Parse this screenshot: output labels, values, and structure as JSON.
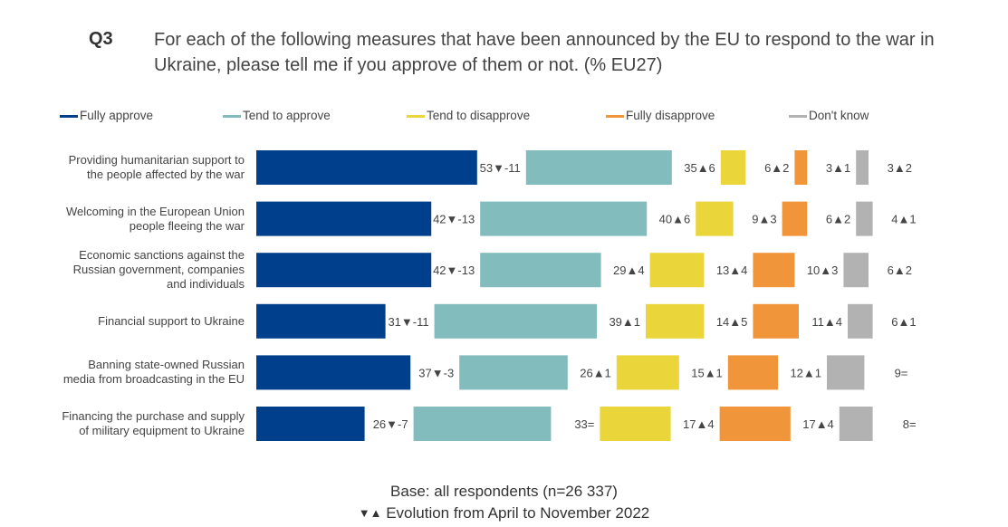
{
  "question": {
    "number": "Q3",
    "text": "For each of the following measures that have been announced by the EU to respond to the war in Ukraine, please tell me if you approve of them or not. (% EU27)"
  },
  "colors": {
    "Fully approve": "#003f8c",
    "Tend to approve": "#82bcbd",
    "Tend to disapprove": "#ead63b",
    "Fully disapprove": "#f0953a",
    "Don't know": "#b2b2b2"
  },
  "footer": {
    "base": "Base: all respondents (n=26 337)",
    "evolution_arrows": "▼▲",
    "evolution_text": "Evolution from April to November 2022"
  },
  "chart_data": {
    "type": "bar",
    "orientation": "horizontal",
    "stacked": false,
    "legend_position": "top",
    "categories": [
      "Providing humanitarian support to the people affected by the war",
      "Welcoming in the European Union people fleeing the war",
      "Economic sanctions against the Russian government, companies and individuals",
      "Financial support to Ukraine",
      "Banning state-owned Russian media from broadcasting in the EU",
      "Financing the purchase and supply of military equipment to Ukraine"
    ],
    "category_lines": [
      [
        "Providing humanitarian support to",
        "the people affected by the war"
      ],
      [
        "Welcoming in the European Union",
        "people fleeing the war"
      ],
      [
        "Economic sanctions against the",
        "Russian government, companies",
        "and individuals"
      ],
      [
        "Financial support to Ukraine"
      ],
      [
        "Banning state-owned Russian",
        "media from broadcasting in the EU"
      ],
      [
        "Financing the purchase and supply",
        "of military equipment to Ukraine"
      ]
    ],
    "series": [
      {
        "name": "Fully approve",
        "values": [
          53,
          42,
          42,
          31,
          37,
          26
        ],
        "evolution": [
          "▼-11",
          "▼-13",
          "▼-13",
          "▼-11",
          "▼-3",
          "▼-7"
        ]
      },
      {
        "name": "Tend to approve",
        "values": [
          35,
          40,
          29,
          39,
          26,
          33
        ],
        "evolution": [
          "▲6",
          "▲6",
          "▲4",
          "▲1",
          "▲1",
          "="
        ]
      },
      {
        "name": "Tend to disapprove",
        "values": [
          6,
          9,
          13,
          14,
          15,
          17
        ],
        "evolution": [
          "▲2",
          "▲3",
          "▲4",
          "▲5",
          "▲1",
          "▲4"
        ]
      },
      {
        "name": "Fully disapprove",
        "values": [
          3,
          6,
          10,
          11,
          12,
          17
        ],
        "evolution": [
          "▲1",
          "▲2",
          "▲3",
          "▲4",
          "▲1",
          "▲4"
        ]
      },
      {
        "name": "Don't know",
        "values": [
          3,
          4,
          6,
          6,
          9,
          8
        ],
        "evolution": [
          "▲2",
          "▲1",
          "▲2",
          "▲1",
          "=",
          "="
        ]
      }
    ]
  }
}
